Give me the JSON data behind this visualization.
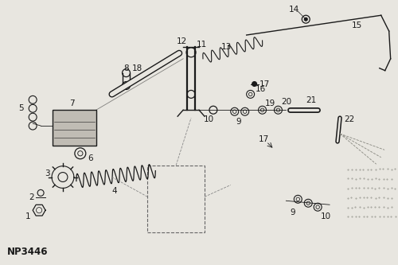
{
  "background_color": "#e8e6e0",
  "line_color": "#1a1a1a",
  "catalog_number": "NP3446",
  "label_fontsize": 7.5,
  "catalog_fontsize": 8.5
}
